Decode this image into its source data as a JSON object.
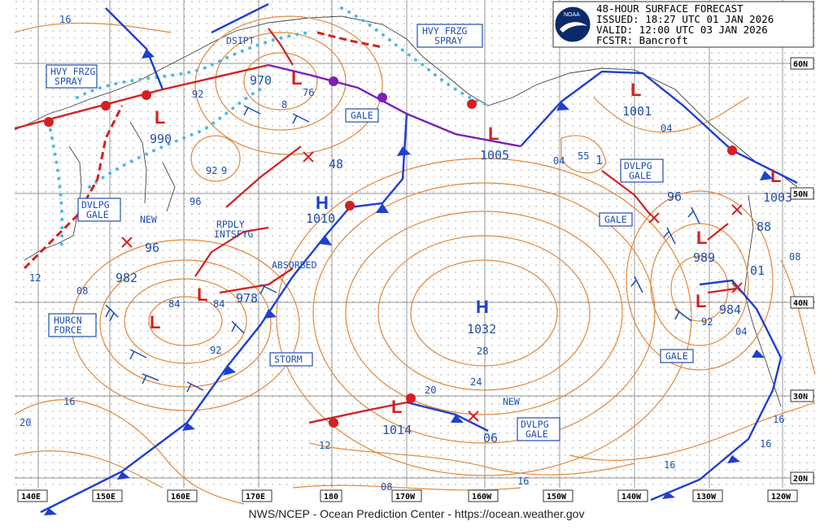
{
  "header": {
    "title": "48-HOUR SURFACE FORECAST",
    "issued": "ISSUED: 18:27 UTC 01 JAN 2026",
    "valid": "VALID:  12:00 UTC 03 JAN 2026",
    "forecaster": "FCSTR:  Bancroft",
    "logo_text": "NOAA"
  },
  "footer": "NWS/NCEP - Ocean Prediction Center - https://ocean.weather.gov",
  "longitude_labels": [
    "140E",
    "150E",
    "160E",
    "170E",
    "180",
    "170W",
    "160W",
    "150W",
    "140W",
    "130W",
    "120W"
  ],
  "latitude_labels": [
    "60N",
    "50N",
    "40N",
    "30N",
    "20N"
  ],
  "pressure_centers": [
    {
      "type": "L",
      "value": "970"
    },
    {
      "type": "L",
      "value": "990"
    },
    {
      "type": "L",
      "value": "1005"
    },
    {
      "type": "L",
      "value": "1001"
    },
    {
      "type": "L",
      "value": "1003"
    },
    {
      "type": "L",
      "value": "989"
    },
    {
      "type": "L",
      "value": "984"
    },
    {
      "type": "L",
      "value": "978"
    },
    {
      "type": "L",
      "value": "982"
    },
    {
      "type": "L",
      "value": "1014"
    },
    {
      "type": "H",
      "value": "1010"
    },
    {
      "type": "H",
      "value": "1032"
    }
  ],
  "boxed_labels": [
    "HVY FRZG SPRAY",
    "HVY FRZG SPRAY",
    "GALE",
    "DVLPG GALE",
    "DVLPG GALE",
    "GALE",
    "HURCN FORCE",
    "STORM",
    "DVLPG GALE",
    "GALE"
  ],
  "free_labels": [
    "DSIPT",
    "RPDLY INTSFYG",
    "ABSORBED",
    "NEW",
    "NEW"
  ],
  "isobar_labels": [
    "16",
    "92",
    "76",
    "8",
    "92",
    "9",
    "96",
    "48",
    "12",
    "08",
    "84",
    "84",
    "92",
    "96",
    "20",
    "16",
    "28",
    "24",
    "20",
    "12",
    "08",
    "16",
    "04",
    "55",
    "04",
    "1",
    "96",
    "88",
    "08",
    "01",
    "92",
    "04",
    "16",
    "16",
    "16",
    "06"
  ]
}
